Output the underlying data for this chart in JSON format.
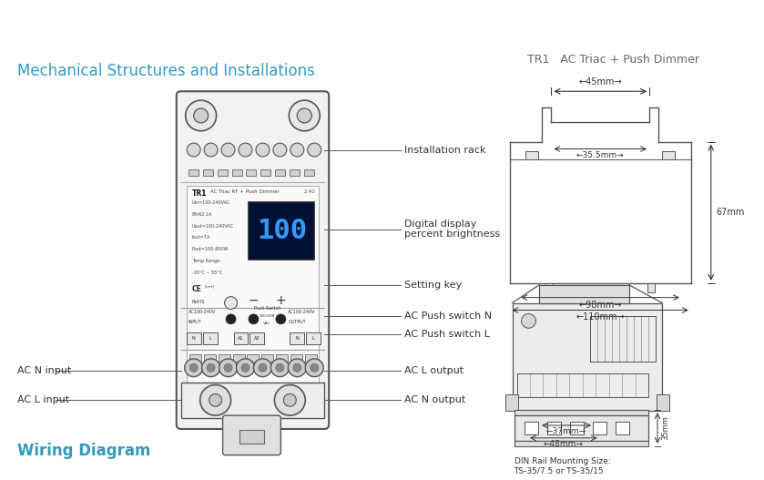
{
  "bg_color": "#ffffff",
  "title_top_right": "TR1   AC Triac + Push Dimmer",
  "title_top_right_color": "#666666",
  "section_title_left": "Mechanical Structures and Installations",
  "section_title_left_color": "#3399cc",
  "section_title_bottom": "Wiring Diagram",
  "section_title_bottom_color": "#3399bb",
  "label_color": "#333333",
  "line_color": "#444444",
  "din_label": "DIN Rail Mounting Size:\nTS-35/7.5 or TS-35/15"
}
